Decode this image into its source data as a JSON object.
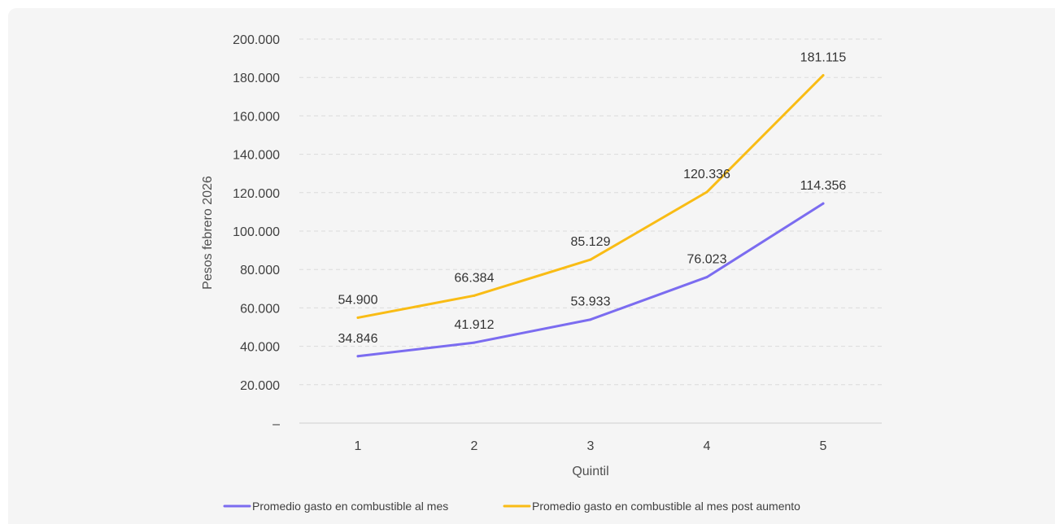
{
  "chart_data": {
    "type": "line",
    "title": "",
    "xlabel": "Quintil",
    "ylabel": "Pesos febrero 2026",
    "categories": [
      "1",
      "2",
      "3",
      "4",
      "5"
    ],
    "ylim": [
      0,
      200000
    ],
    "yticks": [
      {
        "value": 0,
        "label": "–"
      },
      {
        "value": 20000,
        "label": "20.000"
      },
      {
        "value": 40000,
        "label": "40.000"
      },
      {
        "value": 60000,
        "label": "60.000"
      },
      {
        "value": 80000,
        "label": "80.000"
      },
      {
        "value": 100000,
        "label": "100.000"
      },
      {
        "value": 120000,
        "label": "120.000"
      },
      {
        "value": 140000,
        "label": "140.000"
      },
      {
        "value": 160000,
        "label": "160.000"
      },
      {
        "value": 180000,
        "label": "180.000"
      },
      {
        "value": 200000,
        "label": "200.000"
      }
    ],
    "grid": true,
    "legend_position": "bottom",
    "series": [
      {
        "name": "Promedio gasto en combustible al mes",
        "color": "#7b6cf0",
        "values": [
          34846,
          41912,
          53933,
          76023,
          114356
        ],
        "labels": [
          "34.846",
          "41.912",
          "53.933",
          "76.023",
          "114.356"
        ]
      },
      {
        "name": "Promedio gasto en combustible al mes post aumento",
        "color": "#f9bc15",
        "values": [
          54900,
          66384,
          85129,
          120336,
          181115
        ],
        "labels": [
          "54.900",
          "66.384",
          "85.129",
          "120.336",
          "181.115"
        ]
      }
    ]
  }
}
